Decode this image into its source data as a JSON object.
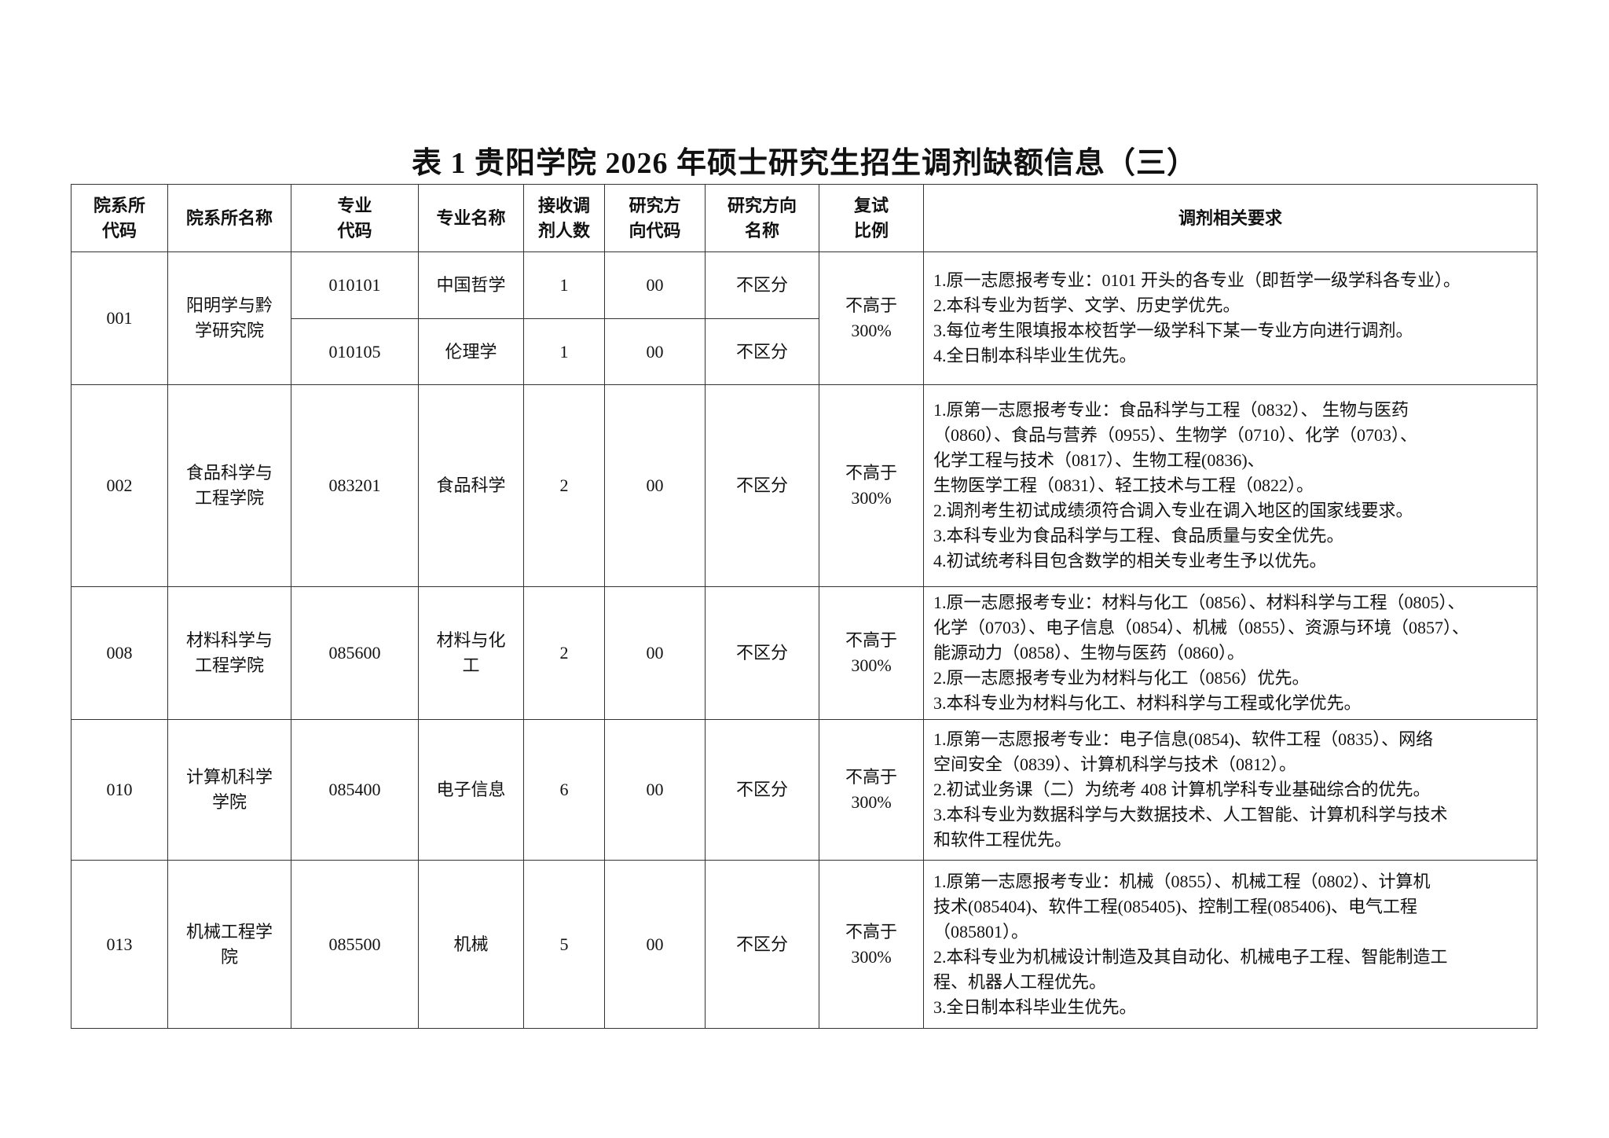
{
  "title": "表 1  贵阳学院 2026 年硕士研究生招生调剂缺额信息（三）",
  "headers": [
    [
      "院系所",
      "代码"
    ],
    [
      "院系所名称"
    ],
    [
      "专业",
      "代码"
    ],
    [
      "专业名称"
    ],
    [
      "接收调",
      "剂人数"
    ],
    [
      "研究方",
      "向代码"
    ],
    [
      "研究方向",
      "名称"
    ],
    [
      "复试",
      "比例"
    ],
    [
      "调剂相关要求"
    ]
  ],
  "rows": [
    {
      "dept_code": "001",
      "dept_name": [
        "阳明学与黔",
        "学研究院"
      ],
      "majors": [
        {
          "code": "010101",
          "name": [
            "中国哲学"
          ],
          "count": "1",
          "dir_code": "00",
          "dir_name": "不区分"
        },
        {
          "code": "010105",
          "name": [
            "伦理学"
          ],
          "count": "1",
          "dir_code": "00",
          "dir_name": "不区分"
        }
      ],
      "ratio": [
        "不高于",
        "300%"
      ],
      "requirements": [
        "1.原一志愿报考专业：0101 开头的各专业（即哲学一级学科各专业）。",
        "2.本科专业为哲学、文学、历史学优先。",
        "3.每位考生限填报本校哲学一级学科下某一专业方向进行调剂。",
        "4.全日制本科毕业生优先。"
      ]
    },
    {
      "dept_code": "002",
      "dept_name": [
        "食品科学与",
        "工程学院"
      ],
      "majors": [
        {
          "code": "083201",
          "name": [
            "食品科学"
          ],
          "count": "2",
          "dir_code": "00",
          "dir_name": "不区分"
        }
      ],
      "ratio": [
        "不高于",
        "300%"
      ],
      "requirements": [
        "1.原第一志愿报考专业：食品科学与工程（0832）、 生物与医药",
        "（0860）、食品与营养（0955）、生物学（0710）、化学（0703）、",
        "化学工程与技术（0817）、生物工程(0836)、",
        "生物医学工程（0831）、轻工技术与工程（0822）。",
        "2.调剂考生初试成绩须符合调入专业在调入地区的国家线要求。",
        "3.本科专业为食品科学与工程、食品质量与安全优先。",
        "4.初试统考科目包含数学的相关专业考生予以优先。"
      ]
    },
    {
      "dept_code": "008",
      "dept_name": [
        "材料科学与",
        "工程学院"
      ],
      "majors": [
        {
          "code": "085600",
          "name": [
            "材料与化",
            "工"
          ],
          "count": "2",
          "dir_code": "00",
          "dir_name": "不区分"
        }
      ],
      "ratio": [
        "不高于",
        "300%"
      ],
      "requirements": [
        "1.原一志愿报考专业：材料与化工（0856）、材料科学与工程（0805）、",
        "化学（0703）、电子信息（0854）、机械（0855）、资源与环境（0857）、",
        "能源动力（0858）、生物与医药（0860）。",
        "2.原一志愿报考专业为材料与化工（0856）优先。",
        "3.本科专业为材料与化工、材料科学与工程或化学优先。"
      ]
    },
    {
      "dept_code": "010",
      "dept_name": [
        "计算机科学",
        "学院"
      ],
      "majors": [
        {
          "code": "085400",
          "name": [
            "电子信息"
          ],
          "count": "6",
          "dir_code": "00",
          "dir_name": "不区分"
        }
      ],
      "ratio": [
        "不高于",
        "300%"
      ],
      "requirements": [
        "1.原第一志愿报考专业：电子信息(0854)、软件工程（0835）、网络",
        "空间安全（0839）、计算机科学与技术（0812）。",
        "2.初试业务课（二）为统考 408 计算机学科专业基础综合的优先。",
        "3.本科专业为数据科学与大数据技术、人工智能、计算机科学与技术",
        "和软件工程优先。"
      ]
    },
    {
      "dept_code": "013",
      "dept_name": [
        "机械工程学",
        "院"
      ],
      "majors": [
        {
          "code": "085500",
          "name": [
            "机械"
          ],
          "count": "5",
          "dir_code": "00",
          "dir_name": "不区分"
        }
      ],
      "ratio": [
        "不高于",
        "300%"
      ],
      "requirements": [
        "1.原第一志愿报考专业：机械（0855）、机械工程（0802）、计算机",
        "技术(085404)、软件工程(085405)、控制工程(085406)、电气工程",
        "（085801）。",
        "2.本科专业为机械设计制造及其自动化、机械电子工程、智能制造工",
        "程、机器人工程优先。",
        "3.全日制本科毕业生优先。"
      ]
    }
  ]
}
